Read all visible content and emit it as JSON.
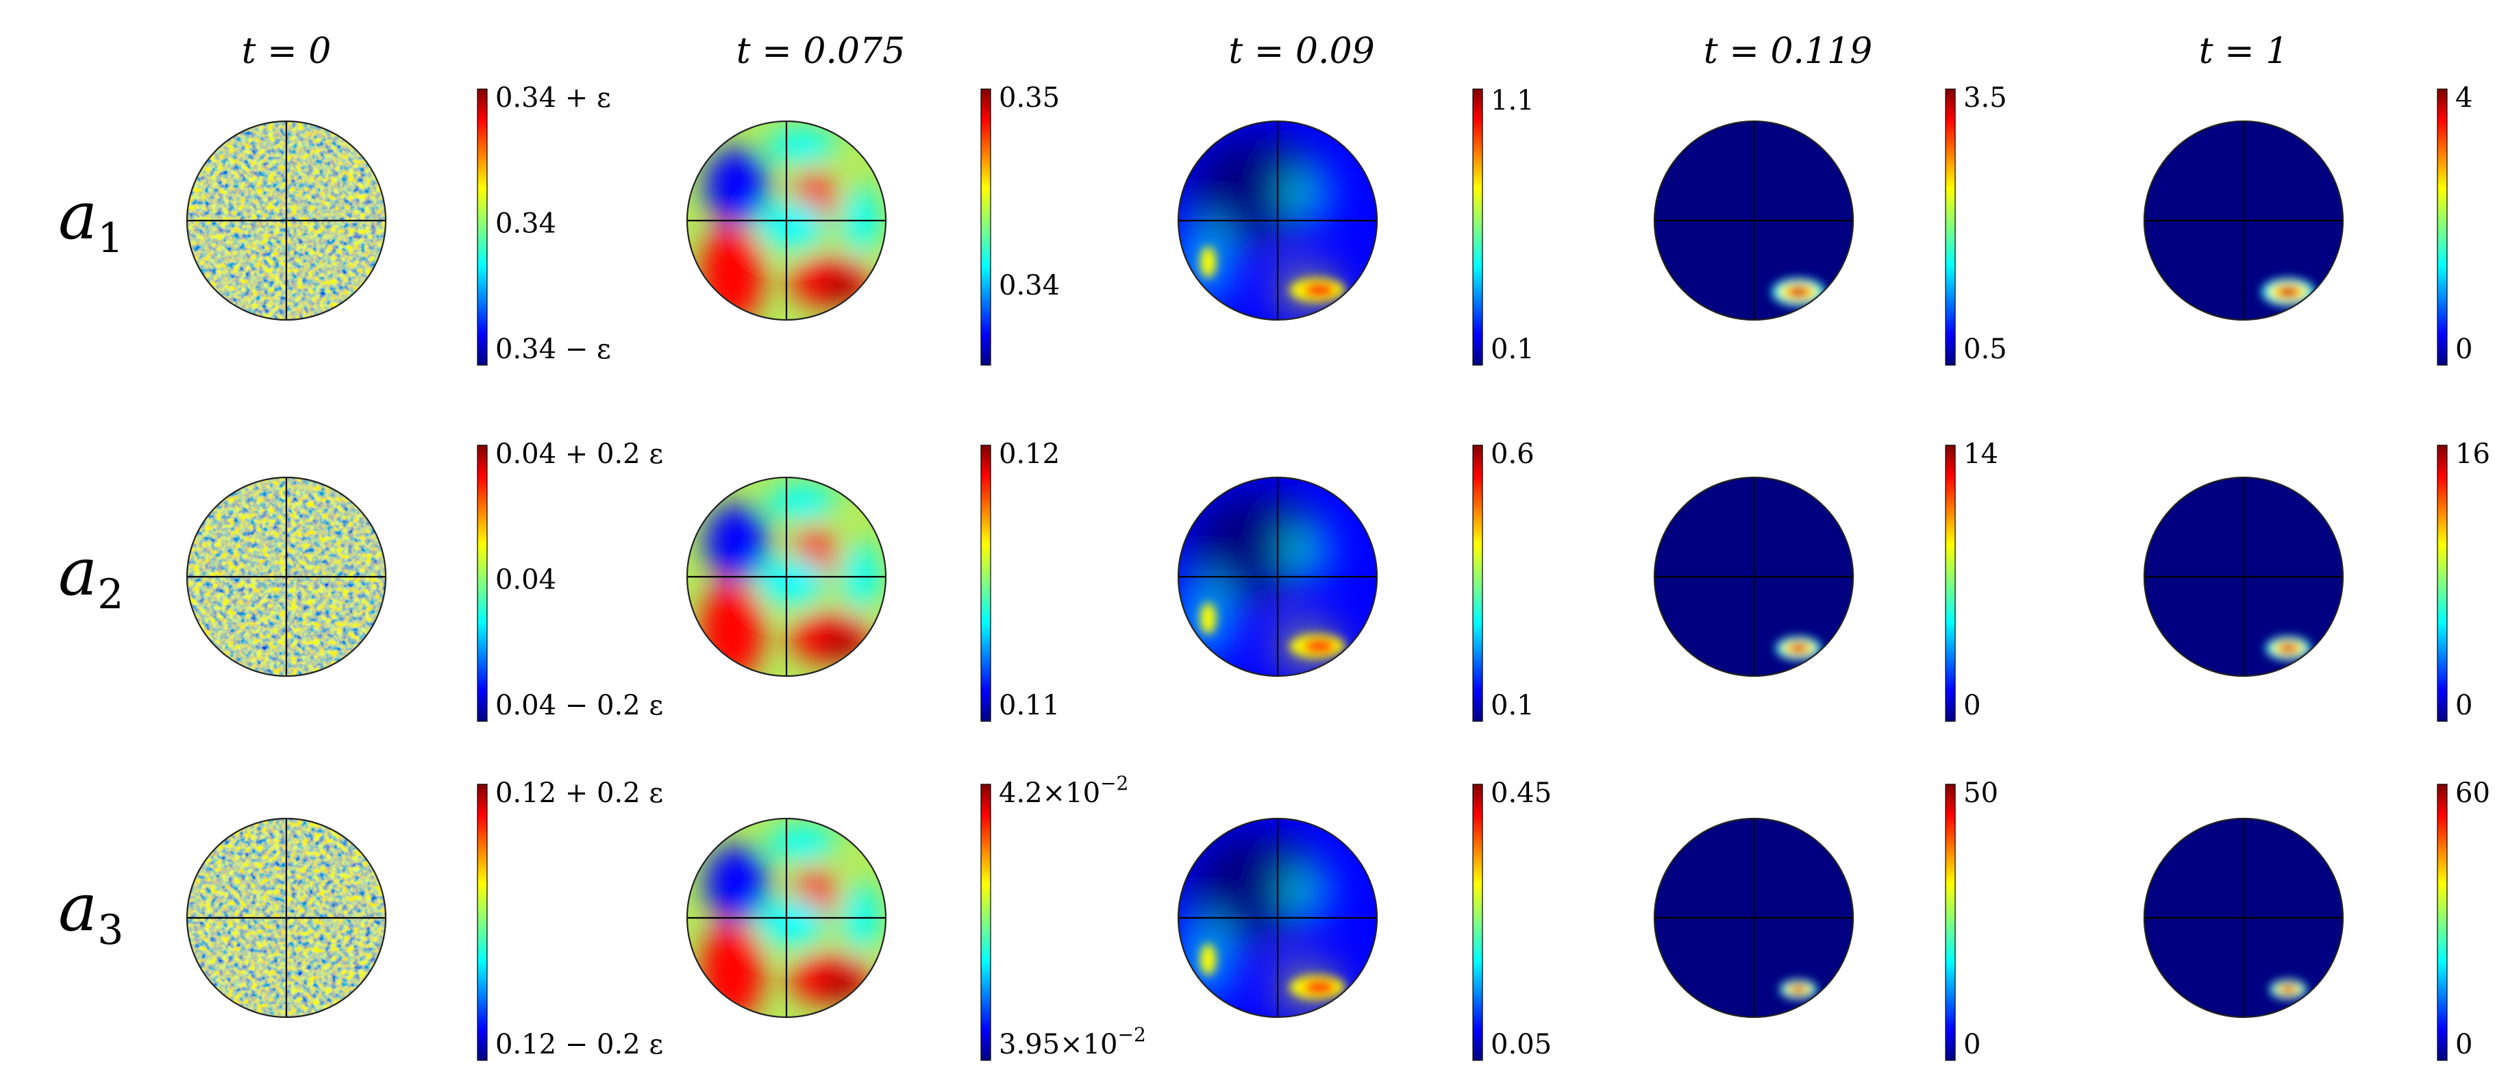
{
  "figure": {
    "column_titles": [
      "t = 0",
      "t = 0.075",
      "t = 0.09",
      "t = 0.119",
      "t = 1"
    ],
    "rows": [
      {
        "label_main": "a",
        "label_sub": "1",
        "colorbars": [
          [
            {
              "text": "0.34 + ε"
            },
            {
              "text": "0.34"
            },
            {
              "text": "0.34 − ε"
            }
          ],
          [
            {
              "text": "0.35"
            },
            {
              "text": "0.34"
            }
          ],
          [
            {
              "text": "1.1"
            },
            {
              "text": "0.1"
            }
          ],
          [
            {
              "text": "3.5"
            },
            {
              "text": "0.5"
            }
          ],
          [
            {
              "text": "4"
            },
            {
              "text": "0"
            }
          ]
        ]
      },
      {
        "label_main": "a",
        "label_sub": "2",
        "colorbars": [
          [
            {
              "text": "0.04 + 0.2 ε"
            },
            {
              "text": "0.04"
            },
            {
              "text": "0.04 − 0.2 ε"
            }
          ],
          [
            {
              "text": "0.12"
            },
            {
              "text": "0.11"
            }
          ],
          [
            {
              "text": "0.6"
            },
            {
              "text": "0.1"
            }
          ],
          [
            {
              "text": "14"
            },
            {
              "text": "0"
            }
          ],
          [
            {
              "text": "16"
            },
            {
              "text": "0"
            }
          ]
        ]
      },
      {
        "label_main": "a",
        "label_sub": "3",
        "colorbars": [
          [
            {
              "text": "0.12 + 0.2 ε"
            },
            {
              "text": "0.12 − 0.2 ε"
            }
          ],
          [
            {
              "text": "4.2×10",
              "sup": "−2"
            },
            {
              "text": "3.95×10",
              "sup": "−2"
            }
          ],
          [
            {
              "text": "0.45"
            },
            {
              "text": "0.05"
            }
          ],
          [
            {
              "text": "50"
            },
            {
              "text": "0"
            }
          ],
          [
            {
              "text": "60"
            },
            {
              "text": "0"
            }
          ]
        ]
      }
    ],
    "colormap": "jet",
    "colors": {
      "jet_dark_red": "#800000",
      "jet_red": "#ff0000",
      "jet_yellow": "#ffff00",
      "jet_cyan": "#00ffff",
      "jet_blue": "#0000ff",
      "jet_dark_blue": "#000080",
      "noise_base": "#8ce08a",
      "background": "#ffffff"
    }
  }
}
